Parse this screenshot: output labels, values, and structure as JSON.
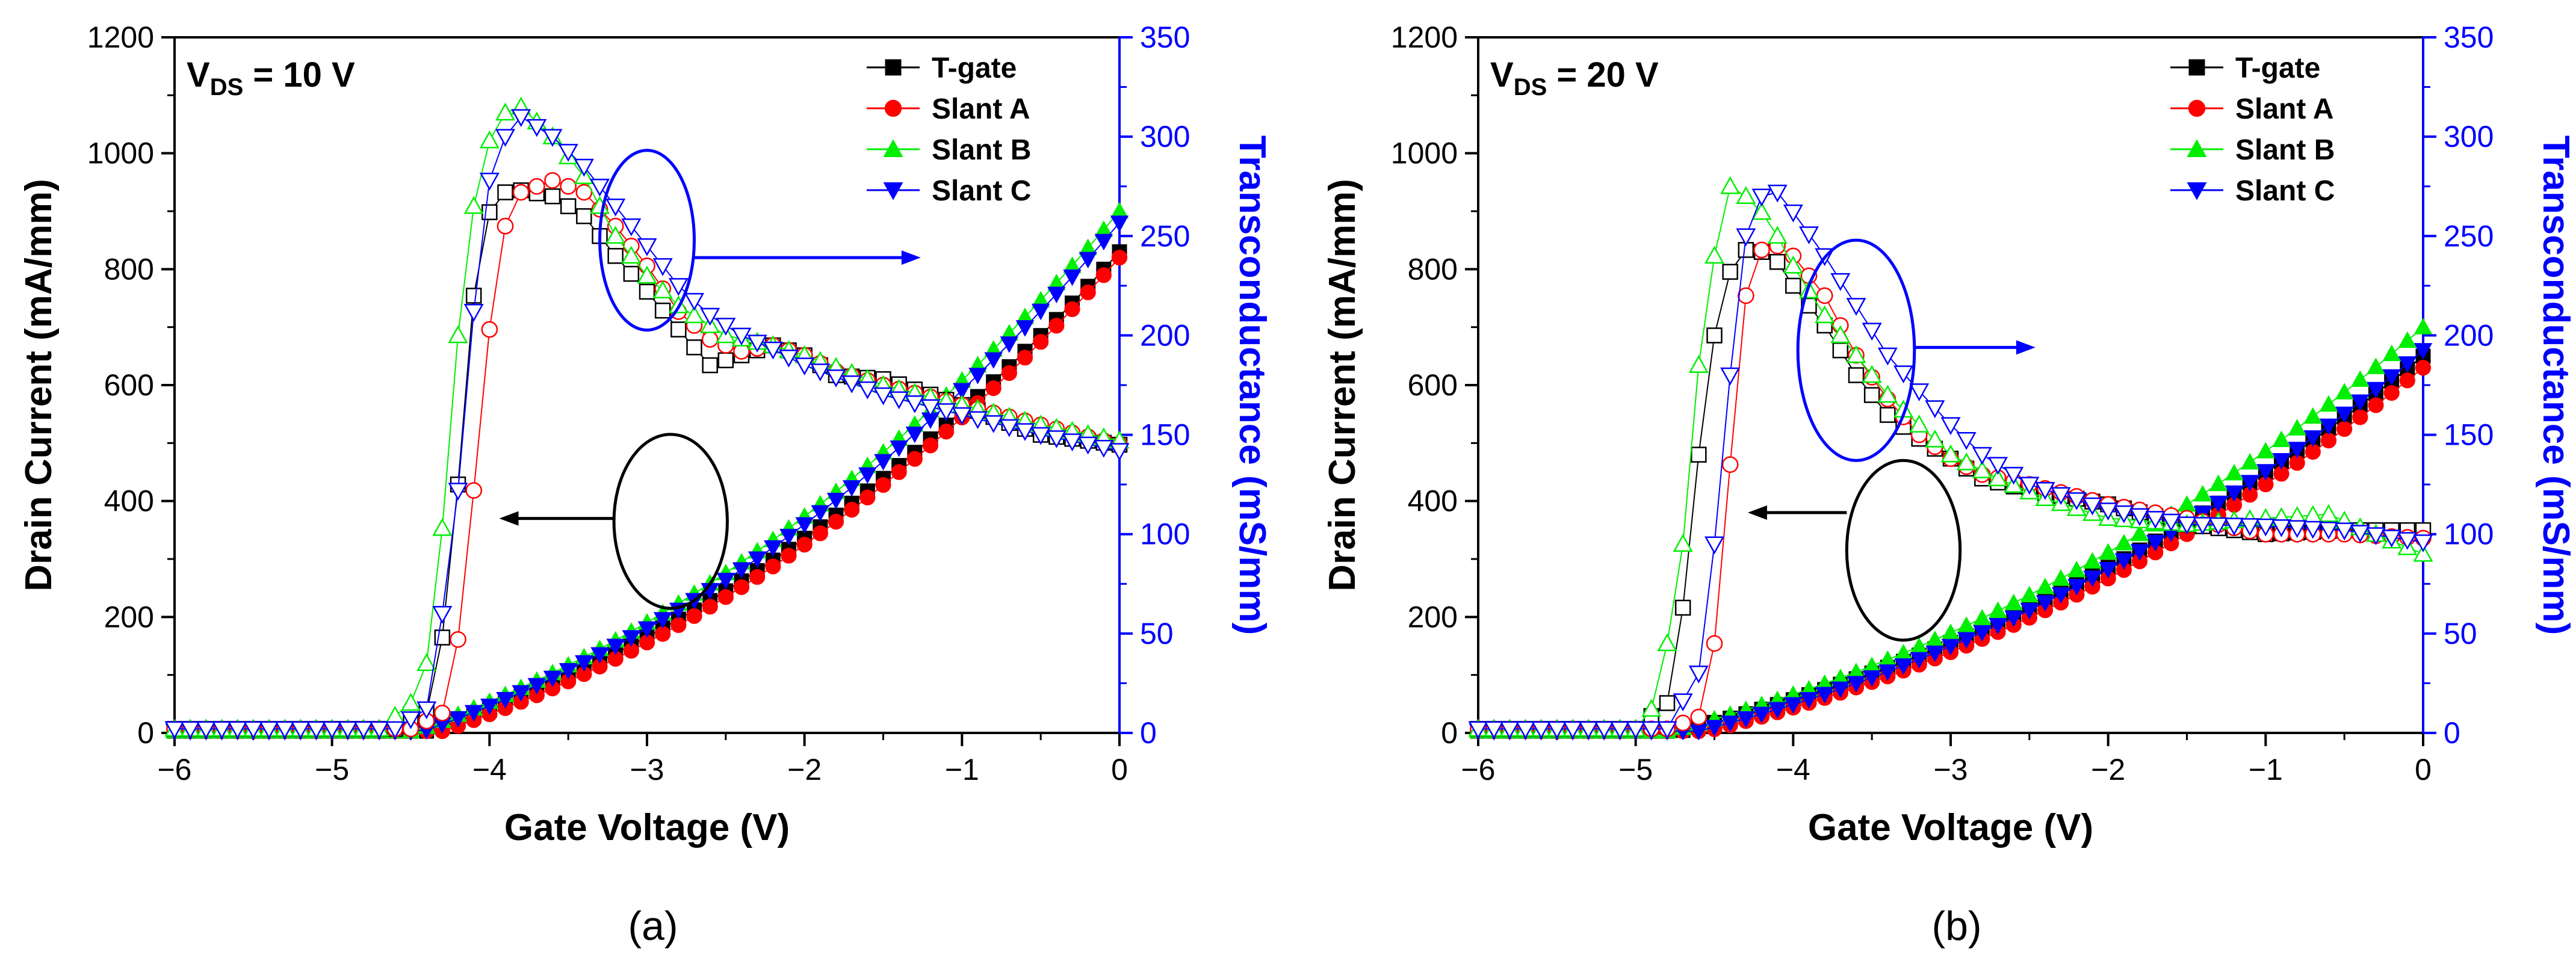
{
  "figure": {
    "panels": [
      "(a)",
      "(b)"
    ]
  },
  "colors": {
    "T-gate": "#000000",
    "Slant A": "#ff0000",
    "Slant B": "#00ee00",
    "Slant C": "#0000ff",
    "right_axis": "#0000ff"
  },
  "chart_data": [
    {
      "type": "line",
      "panel_label": "(a)",
      "annotation_prefix": "V",
      "annotation_sub": "DS",
      "annotation_suffix": " = 10 V",
      "xlabel": "Gate Voltage (V)",
      "ylabel": "Drain Current (mA/mm)",
      "y2label": "Transconductance (mS/mm)",
      "xlim": [
        -6,
        0
      ],
      "ylim": [
        0,
        1200
      ],
      "y2lim": [
        0,
        350
      ],
      "xticks": [
        -6,
        -5,
        -4,
        -3,
        -2,
        -1,
        0
      ],
      "yticks": [
        0,
        200,
        400,
        600,
        800,
        1000,
        1200
      ],
      "y2ticks": [
        0,
        50,
        100,
        150,
        200,
        250,
        300,
        350
      ],
      "legend_position": "top-right",
      "legend": [
        "T-gate",
        "Slant A",
        "Slant B",
        "Slant C"
      ],
      "drain_current": [
        {
          "name": "T-gate",
          "marker": "square",
          "vth": -4.38,
          "value_at_0": 830
        },
        {
          "name": "Slant A",
          "marker": "circle",
          "vth": -4.3,
          "value_at_0": 820
        },
        {
          "name": "Slant B",
          "marker": "triangle-up",
          "vth": -4.48,
          "value_at_0": 900
        },
        {
          "name": "Slant C",
          "marker": "triangle-down",
          "vth": -4.42,
          "value_at_0": 880
        }
      ],
      "transconductance": [
        {
          "name": "T-gate",
          "marker": "square",
          "points": [
            [
              -6,
              2
            ],
            [
              -4.6,
              2
            ],
            [
              -4.4,
              10
            ],
            [
              -4.3,
              48
            ],
            [
              -4.2,
              125
            ],
            [
              -4.1,
              220
            ],
            [
              -4.0,
              262
            ],
            [
              -3.9,
              272
            ],
            [
              -3.8,
              273
            ],
            [
              -3.6,
              270
            ],
            [
              -3.4,
              260
            ],
            [
              -3.2,
              240
            ],
            [
              -3.0,
              222
            ],
            [
              -2.8,
              203
            ],
            [
              -2.6,
              185
            ],
            [
              -2.4,
              190
            ],
            [
              -2.2,
              195
            ],
            [
              -2.0,
              190
            ],
            [
              -1.8,
              180
            ],
            [
              -1.5,
              178
            ],
            [
              -1.0,
              165
            ],
            [
              -0.5,
              150
            ],
            [
              0,
              145
            ]
          ]
        },
        {
          "name": "Slant A",
          "marker": "circle",
          "points": [
            [
              -6,
              2
            ],
            [
              -4.5,
              2
            ],
            [
              -4.3,
              10
            ],
            [
              -4.2,
              47
            ],
            [
              -4.1,
              122
            ],
            [
              -4.0,
              203
            ],
            [
              -3.9,
              255
            ],
            [
              -3.8,
              272
            ],
            [
              -3.6,
              278
            ],
            [
              -3.4,
              272
            ],
            [
              -3.2,
              255
            ],
            [
              -3.0,
              235
            ],
            [
              -2.8,
              212
            ],
            [
              -2.6,
              198
            ],
            [
              -2.4,
              192
            ],
            [
              -2.2,
              195
            ],
            [
              -2.0,
              190
            ],
            [
              -1.8,
              182
            ],
            [
              -1.5,
              175
            ],
            [
              -1.0,
              165
            ],
            [
              -0.5,
              155
            ],
            [
              0,
              145
            ]
          ]
        },
        {
          "name": "Slant B",
          "marker": "triangle-up",
          "points": [
            [
              -6,
              2
            ],
            [
              -4.7,
              2
            ],
            [
              -4.5,
              15
            ],
            [
              -4.4,
              35
            ],
            [
              -4.3,
              103
            ],
            [
              -4.2,
              200
            ],
            [
              -4.1,
              265
            ],
            [
              -4.0,
              298
            ],
            [
              -3.9,
              312
            ],
            [
              -3.8,
              315
            ],
            [
              -3.6,
              300
            ],
            [
              -3.4,
              280
            ],
            [
              -3.2,
              250
            ],
            [
              -3.0,
              230
            ],
            [
              -2.8,
              215
            ],
            [
              -2.5,
              200
            ],
            [
              -2.2,
              195
            ],
            [
              -2.0,
              190
            ],
            [
              -1.5,
              175
            ],
            [
              -1.0,
              165
            ],
            [
              -0.5,
              155
            ],
            [
              0,
              147
            ]
          ]
        },
        {
          "name": "Slant C",
          "marker": "triangle-down",
          "points": [
            [
              -6,
              2
            ],
            [
              -4.6,
              2
            ],
            [
              -4.4,
              12
            ],
            [
              -4.3,
              60
            ],
            [
              -4.2,
              122
            ],
            [
              -4.1,
              212
            ],
            [
              -4.0,
              278
            ],
            [
              -3.9,
              300
            ],
            [
              -3.8,
              310
            ],
            [
              -3.6,
              300
            ],
            [
              -3.4,
              285
            ],
            [
              -3.2,
              265
            ],
            [
              -3.0,
              245
            ],
            [
              -2.8,
              225
            ],
            [
              -2.6,
              210
            ],
            [
              -2.4,
              200
            ],
            [
              -2.2,
              193
            ],
            [
              -2.0,
              185
            ],
            [
              -1.5,
              170
            ],
            [
              -1.0,
              160
            ],
            [
              -0.5,
              150
            ],
            [
              0,
              142
            ]
          ]
        }
      ],
      "annotations": [
        {
          "type": "ellipse",
          "cx": -3.0,
          "cy": 850,
          "rx": 0.3,
          "ry": 155,
          "color": "#0000ff",
          "arrow_to": -1.3,
          "arrow_y": 820
        },
        {
          "type": "ellipse",
          "cx": -2.85,
          "cy": 365,
          "rx": 0.36,
          "ry": 150,
          "color": "#000000",
          "arrow_to": -3.9,
          "arrow_y": 370
        }
      ]
    },
    {
      "type": "line",
      "panel_label": "(b)",
      "annotation_prefix": "V",
      "annotation_sub": "DS",
      "annotation_suffix": " = 20 V",
      "xlabel": "Gate Voltage (V)",
      "ylabel": "Drain Current (mA/mm)",
      "y2label": "Transconductance (mS/mm)",
      "xlim": [
        -6,
        0
      ],
      "ylim": [
        0,
        1200
      ],
      "y2lim": [
        0,
        350
      ],
      "xticks": [
        -6,
        -5,
        -4,
        -3,
        -2,
        -1,
        0
      ],
      "yticks": [
        0,
        200,
        400,
        600,
        800,
        1000,
        1200
      ],
      "y2ticks": [
        0,
        50,
        100,
        150,
        200,
        250,
        300,
        350
      ],
      "legend_position": "top-right",
      "legend": [
        "T-gate",
        "Slant A",
        "Slant B",
        "Slant C"
      ],
      "drain_current": [
        {
          "name": "T-gate",
          "marker": "square",
          "vth": -4.72,
          "value_at_0": 650
        },
        {
          "name": "Slant A",
          "marker": "circle",
          "vth": -4.55,
          "value_at_0": 630
        },
        {
          "name": "Slant B",
          "marker": "triangle-up",
          "vth": -4.78,
          "value_at_0": 700
        },
        {
          "name": "Slant C",
          "marker": "triangle-down",
          "vth": -4.6,
          "value_at_0": 660
        }
      ],
      "transconductance": [
        {
          "name": "T-gate",
          "marker": "square",
          "points": [
            [
              -6,
              2
            ],
            [
              -5.0,
              2
            ],
            [
              -4.8,
              15
            ],
            [
              -4.7,
              63
            ],
            [
              -4.6,
              140
            ],
            [
              -4.5,
              200
            ],
            [
              -4.4,
              232
            ],
            [
              -4.3,
              243
            ],
            [
              -4.2,
              242
            ],
            [
              -4.1,
              237
            ],
            [
              -4.0,
              225
            ],
            [
              -3.8,
              205
            ],
            [
              -3.6,
              180
            ],
            [
              -3.4,
              160
            ],
            [
              -3.2,
              148
            ],
            [
              -3.0,
              138
            ],
            [
              -2.8,
              128
            ],
            [
              -2.5,
              122
            ],
            [
              -2.0,
              115
            ],
            [
              -1.5,
              105
            ],
            [
              -1.0,
              100
            ],
            [
              -0.5,
              102
            ],
            [
              0,
              102
            ]
          ]
        },
        {
          "name": "Slant A",
          "marker": "circle",
          "points": [
            [
              -6,
              2
            ],
            [
              -4.8,
              2
            ],
            [
              -4.6,
              8
            ],
            [
              -4.5,
              45
            ],
            [
              -4.4,
              135
            ],
            [
              -4.3,
              220
            ],
            [
              -4.2,
              243
            ],
            [
              -4.1,
              245
            ],
            [
              -4.0,
              240
            ],
            [
              -3.8,
              220
            ],
            [
              -3.6,
              190
            ],
            [
              -3.4,
              168
            ],
            [
              -3.2,
              150
            ],
            [
              -3.0,
              138
            ],
            [
              -2.8,
              130
            ],
            [
              -2.5,
              125
            ],
            [
              -2.0,
              115
            ],
            [
              -1.5,
              108
            ],
            [
              -1.0,
              100
            ],
            [
              -0.5,
              100
            ],
            [
              0,
              98
            ]
          ]
        },
        {
          "name": "Slant B",
          "marker": "triangle-up",
          "points": [
            [
              -6,
              2
            ],
            [
              -5.0,
              2
            ],
            [
              -4.9,
              12
            ],
            [
              -4.8,
              45
            ],
            [
              -4.7,
              95
            ],
            [
              -4.6,
              185
            ],
            [
              -4.5,
              240
            ],
            [
              -4.4,
              275
            ],
            [
              -4.3,
              270
            ],
            [
              -4.2,
              262
            ],
            [
              -4.1,
              250
            ],
            [
              -4.0,
              235
            ],
            [
              -3.8,
              210
            ],
            [
              -3.6,
              190
            ],
            [
              -3.4,
              170
            ],
            [
              -3.2,
              155
            ],
            [
              -3.0,
              140
            ],
            [
              -2.7,
              128
            ],
            [
              -2.4,
              118
            ],
            [
              -2.0,
              108
            ],
            [
              -1.5,
              105
            ],
            [
              -1.0,
              108
            ],
            [
              -0.6,
              110
            ],
            [
              0,
              90
            ]
          ]
        },
        {
          "name": "Slant C",
          "marker": "triangle-down",
          "points": [
            [
              -6,
              2
            ],
            [
              -4.8,
              2
            ],
            [
              -4.6,
              30
            ],
            [
              -4.5,
              95
            ],
            [
              -4.4,
              180
            ],
            [
              -4.3,
              250
            ],
            [
              -4.2,
              270
            ],
            [
              -4.1,
              272
            ],
            [
              -4.0,
              262
            ],
            [
              -3.8,
              240
            ],
            [
              -3.6,
              215
            ],
            [
              -3.4,
              190
            ],
            [
              -3.2,
              172
            ],
            [
              -3.0,
              155
            ],
            [
              -2.8,
              140
            ],
            [
              -2.5,
              125
            ],
            [
              -2.0,
              112
            ],
            [
              -1.5,
              105
            ],
            [
              -1.0,
              104
            ],
            [
              -0.5,
              102
            ],
            [
              0,
              96
            ]
          ]
        }
      ],
      "annotations": [
        {
          "type": "ellipse",
          "cx": -3.6,
          "cy": 660,
          "rx": 0.37,
          "ry": 190,
          "color": "#0000ff",
          "arrow_to": -2.5,
          "arrow_y": 665
        },
        {
          "type": "ellipse",
          "cx": -3.3,
          "cy": 315,
          "rx": 0.36,
          "ry": 155,
          "color": "#000000",
          "arrow_to": -4.25,
          "arrow_y": 380
        }
      ]
    }
  ]
}
